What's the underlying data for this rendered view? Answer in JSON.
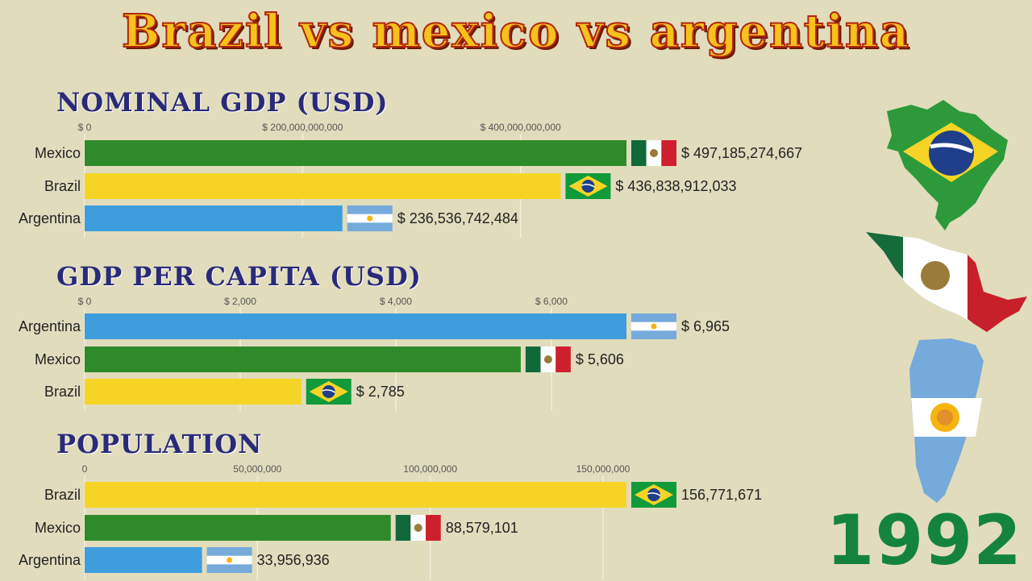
{
  "title": "Brazil vs mexico vs argentina",
  "year": "1992",
  "colors": {
    "Mexico": "#2f8a2a",
    "Brazil": "#f6d425",
    "Argentina": "#3d9ddd",
    "grid": "#f3efdc"
  },
  "chart_data": [
    {
      "type": "bar",
      "title": "NOMINAL GDP (USD)",
      "axis_ticks": [
        0,
        200000000000,
        400000000000
      ],
      "tick_labels": [
        "$ 0",
        "$ 200,000,000,000",
        "$ 400,000,000,000"
      ],
      "xlim": [
        0,
        497185274667
      ],
      "categories": [
        "Mexico",
        "Brazil",
        "Argentina"
      ],
      "values": [
        497185274667,
        436838912033,
        236536742484
      ],
      "value_labels": [
        "$ 497,185,274,667",
        "$ 436,838,912,033",
        "$ 236,536,742,484"
      ]
    },
    {
      "type": "bar",
      "title": "GDP PER CAPITA (USD)",
      "axis_ticks": [
        0,
        2000,
        4000,
        6000
      ],
      "tick_labels": [
        "$ 0",
        "$ 2,000",
        "$ 4,000",
        "$ 6,000"
      ],
      "xlim": [
        0,
        6965
      ],
      "categories": [
        "Argentina",
        "Mexico",
        "Brazil"
      ],
      "values": [
        6965,
        5606,
        2785
      ],
      "value_labels": [
        "$ 6,965",
        "$ 5,606",
        "$ 2,785"
      ]
    },
    {
      "type": "bar",
      "title": "POPULATION",
      "axis_ticks": [
        0,
        50000000,
        100000000,
        150000000
      ],
      "tick_labels": [
        "0",
        "50,000,000",
        "100,000,000",
        "150,000,000"
      ],
      "xlim": [
        0,
        156771671
      ],
      "categories": [
        "Brazil",
        "Mexico",
        "Argentina"
      ],
      "values": [
        156771671,
        88579101,
        33956936
      ],
      "value_labels": [
        "156,771,671",
        "88,579,101",
        "33,956,936"
      ]
    }
  ]
}
